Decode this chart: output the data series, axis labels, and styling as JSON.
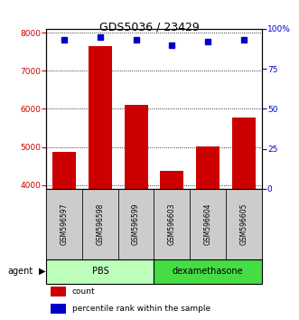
{
  "title": "GDS5036 / 23429",
  "samples": [
    "GSM596597",
    "GSM596598",
    "GSM596599",
    "GSM596603",
    "GSM596604",
    "GSM596605"
  ],
  "counts": [
    4880,
    7650,
    6100,
    4380,
    5020,
    5780
  ],
  "percentile_ranks": [
    93,
    95,
    93,
    90,
    92,
    93
  ],
  "ylim_left": [
    3900,
    8100
  ],
  "ylim_right": [
    0,
    100
  ],
  "yticks_left": [
    4000,
    5000,
    6000,
    7000,
    8000
  ],
  "yticks_right": [
    0,
    25,
    50,
    75,
    100
  ],
  "ytick_labels_right": [
    "0",
    "25",
    "50",
    "75",
    "100%"
  ],
  "bar_color": "#cc0000",
  "dot_color": "#0000cc",
  "bar_bottom": 3900,
  "groups": [
    {
      "label": "PBS",
      "indices": [
        0,
        1,
        2
      ],
      "color": "#bbffbb"
    },
    {
      "label": "dexamethasone",
      "indices": [
        3,
        4,
        5
      ],
      "color": "#44dd44"
    }
  ],
  "agent_label": "agent",
  "legend_count_label": "count",
  "legend_pct_label": "percentile rank within the sample",
  "left_tick_color": "#cc0000",
  "right_tick_color": "#0000cc",
  "sample_box_color": "#cccccc"
}
